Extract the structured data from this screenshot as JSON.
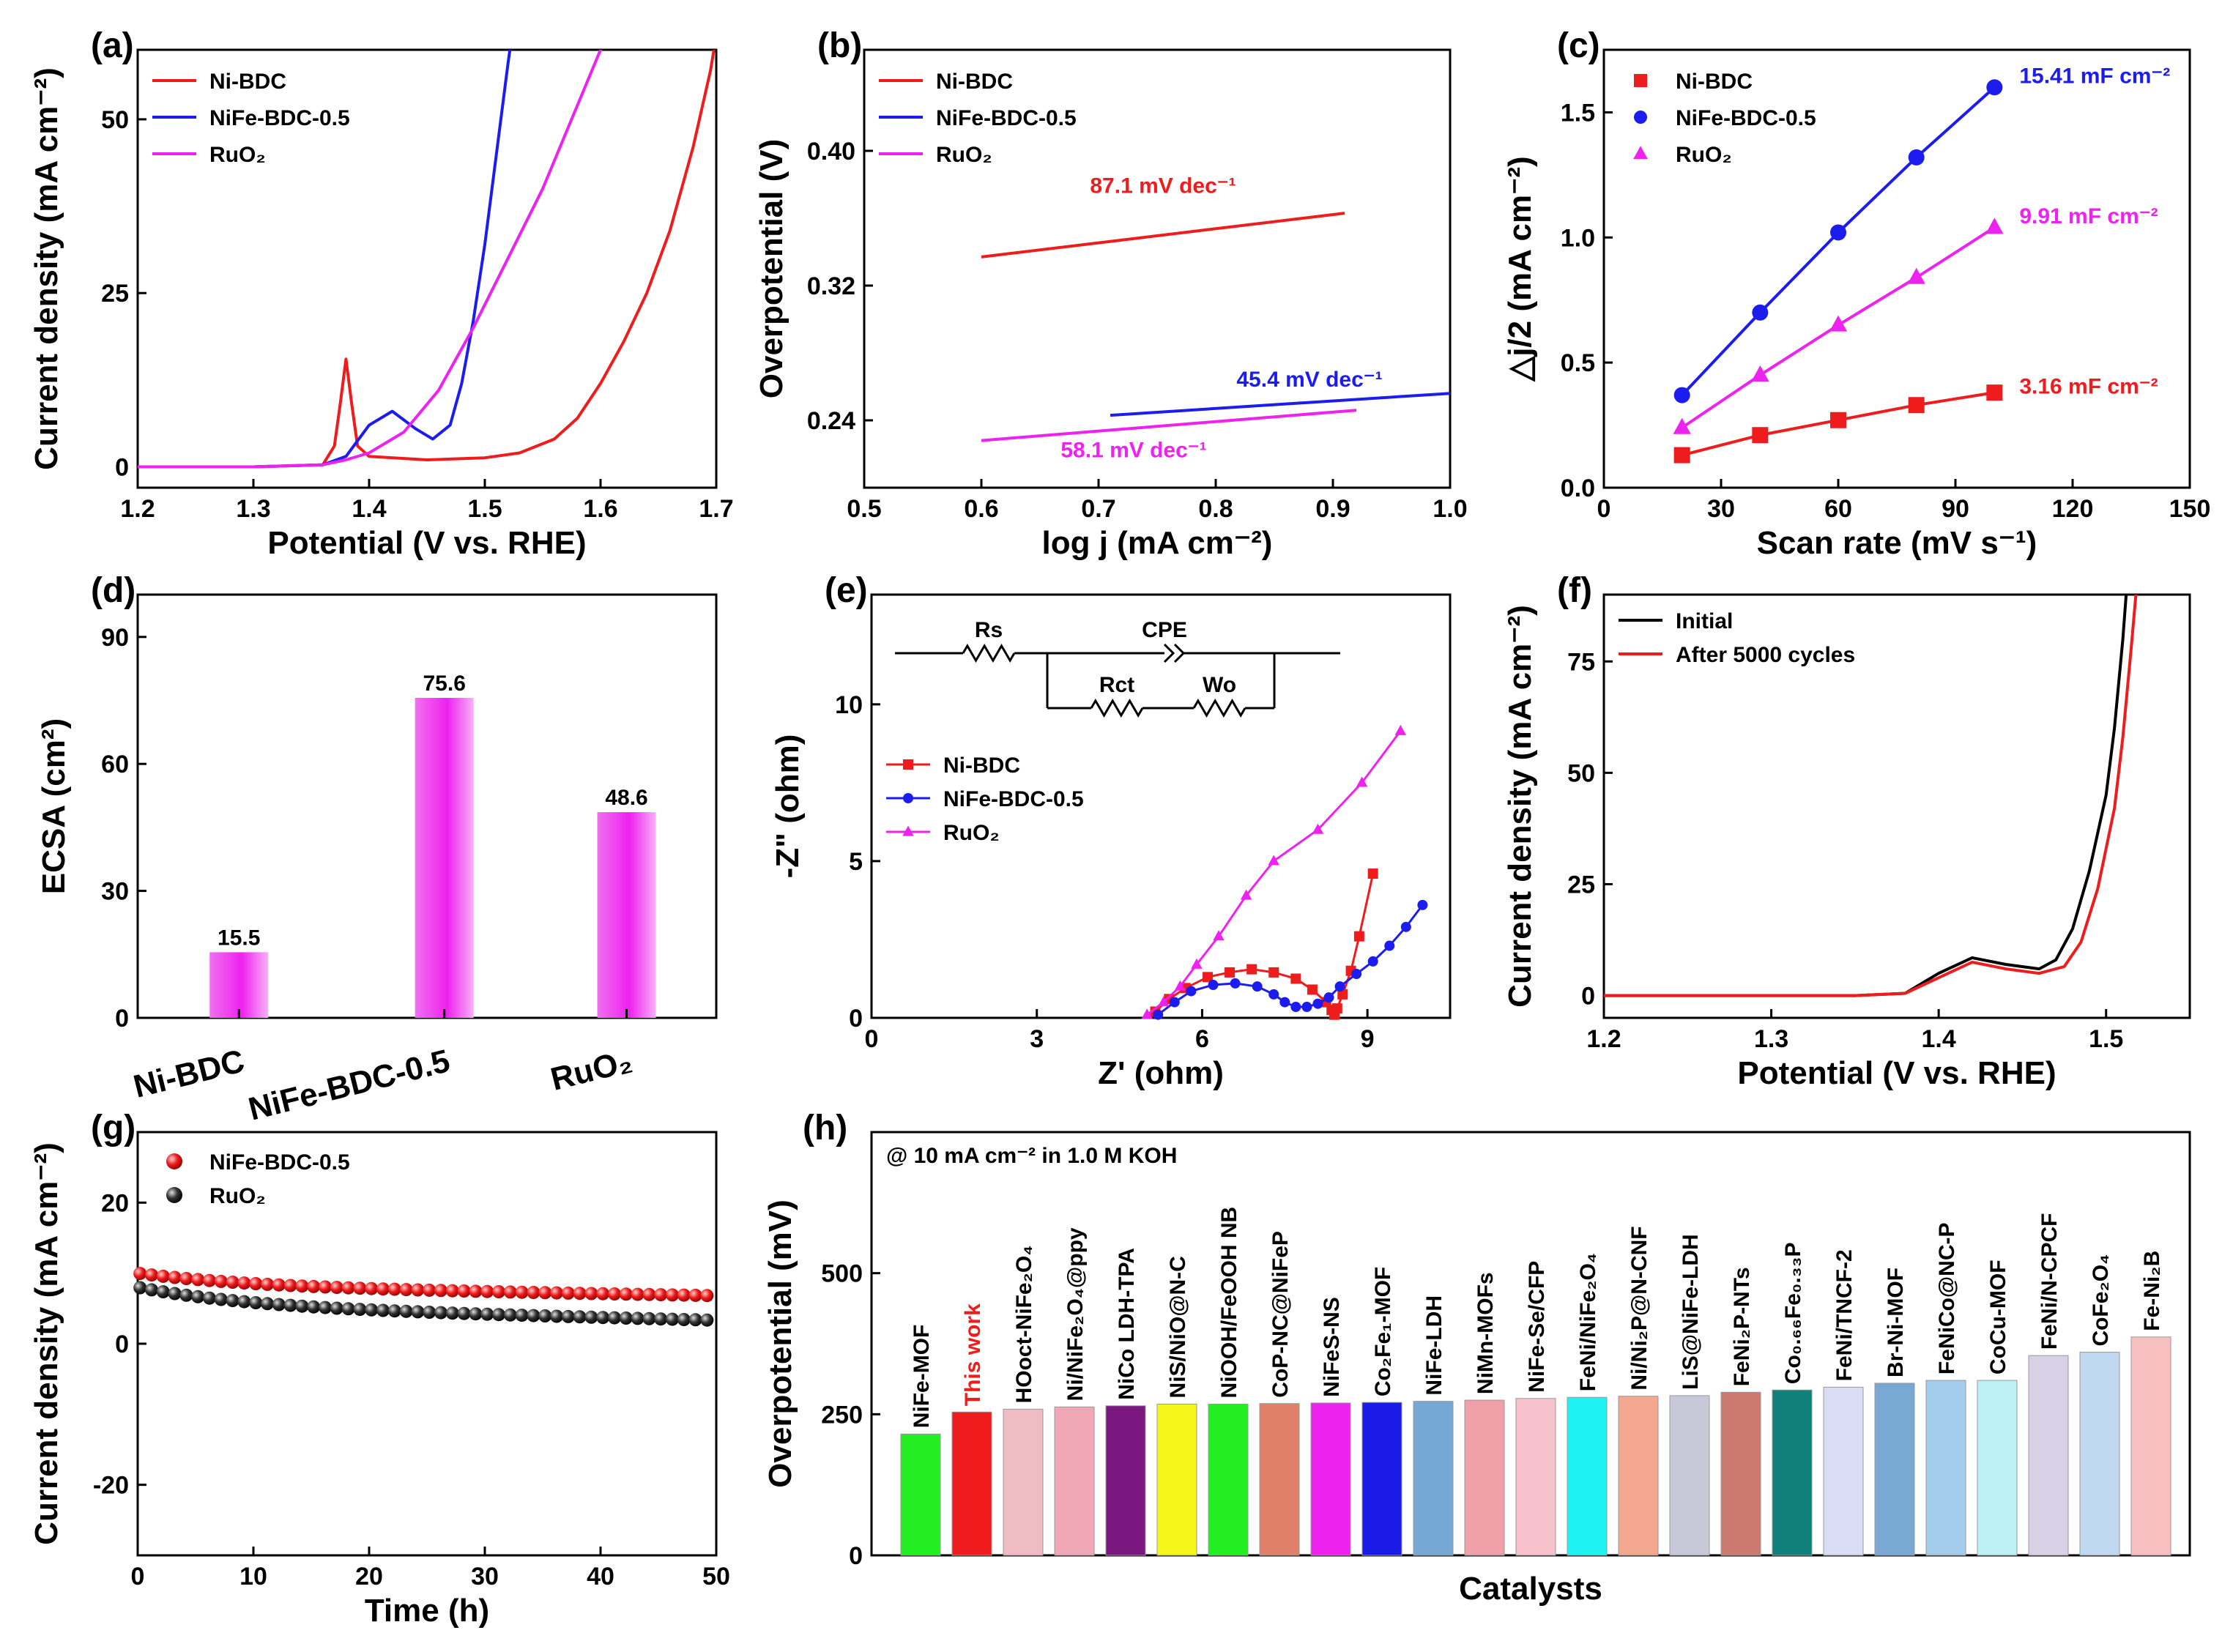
{
  "chart_data": [
    {
      "panel": "(a)",
      "type": "line",
      "xlabel": "Potential (V vs. RHE)",
      "ylabel": "Current density (mA cm⁻²)",
      "xlim": [
        1.2,
        1.7
      ],
      "ylim": [
        -3,
        60
      ],
      "xticks": [
        1.2,
        1.3,
        1.4,
        1.5,
        1.6,
        1.7
      ],
      "yticks": [
        0,
        25,
        50
      ],
      "legend": "top-left",
      "series": [
        {
          "name": "Ni-BDC",
          "color": "#ee1c1c",
          "points": [
            [
              1.2,
              0
            ],
            [
              1.3,
              0
            ],
            [
              1.36,
              0.3
            ],
            [
              1.37,
              3
            ],
            [
              1.375,
              9
            ],
            [
              1.38,
              15.5
            ],
            [
              1.385,
              9
            ],
            [
              1.39,
              3
            ],
            [
              1.4,
              1.5
            ],
            [
              1.45,
              1
            ],
            [
              1.5,
              1.3
            ],
            [
              1.53,
              2
            ],
            [
              1.56,
              4
            ],
            [
              1.58,
              7
            ],
            [
              1.6,
              12
            ],
            [
              1.62,
              18
            ],
            [
              1.64,
              25
            ],
            [
              1.66,
              34
            ],
            [
              1.68,
              46
            ],
            [
              1.695,
              57
            ],
            [
              1.7,
              62
            ]
          ]
        },
        {
          "name": "NiFe-BDC-0.5",
          "color": "#1c1cee",
          "points": [
            [
              1.2,
              0
            ],
            [
              1.3,
              0
            ],
            [
              1.36,
              0.3
            ],
            [
              1.38,
              1.5
            ],
            [
              1.4,
              6
            ],
            [
              1.42,
              8
            ],
            [
              1.44,
              5.5
            ],
            [
              1.455,
              4
            ],
            [
              1.47,
              6
            ],
            [
              1.48,
              12
            ],
            [
              1.49,
              21
            ],
            [
              1.5,
              32
            ],
            [
              1.51,
              45
            ],
            [
              1.52,
              58
            ],
            [
              1.525,
              64
            ]
          ]
        },
        {
          "name": "RuO₂",
          "color": "#ee22ee",
          "points": [
            [
              1.2,
              0
            ],
            [
              1.3,
              0
            ],
            [
              1.36,
              0.3
            ],
            [
              1.38,
              1
            ],
            [
              1.4,
              2
            ],
            [
              1.43,
              5
            ],
            [
              1.46,
              11
            ],
            [
              1.49,
              20
            ],
            [
              1.52,
              30
            ],
            [
              1.55,
              40
            ],
            [
              1.58,
              52
            ],
            [
              1.6,
              60
            ],
            [
              1.61,
              64
            ]
          ]
        }
      ]
    },
    {
      "panel": "(b)",
      "type": "line",
      "xlabel": "log j (mA cm⁻²)",
      "ylabel": "Overpotential (V)",
      "xlim": [
        0.5,
        1.0
      ],
      "ylim": [
        0.2,
        0.46
      ],
      "xticks": [
        0.5,
        0.6,
        0.7,
        0.8,
        0.9,
        1.0
      ],
      "yticks": [
        0.24,
        0.32,
        0.4
      ],
      "legend": "top-left",
      "series": [
        {
          "name": "Ni-BDC",
          "color": "#ee1c1c",
          "points": [
            [
              0.6,
              0.337
            ],
            [
              0.91,
              0.363
            ]
          ],
          "label": "87.1 mV dec⁻¹"
        },
        {
          "name": "NiFe-BDC-0.5",
          "color": "#1c1cee",
          "points": [
            [
              0.71,
              0.243
            ],
            [
              1.0,
              0.256
            ]
          ],
          "label": "45.4 mV dec⁻¹"
        },
        {
          "name": "RuO₂",
          "color": "#ee22ee",
          "points": [
            [
              0.6,
              0.228
            ],
            [
              0.92,
              0.246
            ]
          ],
          "label": "58.1 mV dec⁻¹"
        }
      ]
    },
    {
      "panel": "(c)",
      "type": "scatter",
      "xlabel": "Scan rate (mV s⁻¹)",
      "ylabel": "△j/2 (mA cm⁻²)",
      "xlim": [
        0,
        150
      ],
      "ylim": [
        0,
        1.75
      ],
      "xticks": [
        0,
        30,
        60,
        90,
        120,
        150
      ],
      "yticks": [
        0.0,
        0.5,
        1.0,
        1.5
      ],
      "legend": "top-left",
      "x": [
        20,
        40,
        60,
        80,
        100
      ],
      "series": [
        {
          "name": "Ni-BDC",
          "color": "#ee1c1c",
          "marker": "square",
          "values": [
            0.13,
            0.21,
            0.27,
            0.33,
            0.38
          ],
          "label": "3.16 mF cm⁻²"
        },
        {
          "name": "NiFe-BDC-0.5",
          "color": "#1c1cee",
          "marker": "circle",
          "values": [
            0.37,
            0.7,
            1.02,
            1.32,
            1.6
          ],
          "label": "15.41 mF cm⁻²"
        },
        {
          "name": "RuO₂",
          "color": "#ee22ee",
          "marker": "triangle",
          "values": [
            0.24,
            0.45,
            0.65,
            0.84,
            1.04
          ],
          "label": "9.91 mF cm⁻²"
        }
      ]
    },
    {
      "panel": "(d)",
      "type": "bar",
      "ylabel": "ECSA (cm²)",
      "ylim": [
        0,
        100
      ],
      "yticks": [
        0,
        30,
        60,
        90
      ],
      "categories": [
        "Ni-BDC",
        "NiFe-BDC-0.5",
        "RuO₂"
      ],
      "values": [
        15.5,
        75.6,
        48.6
      ],
      "labels": [
        "15.5",
        "75.6",
        "48.6"
      ],
      "color": "#ee22ee"
    },
    {
      "panel": "(e)",
      "type": "scatter",
      "xlabel": "Z' (ohm)",
      "ylabel": "-Z\" (ohm)",
      "xlim": [
        0,
        10.5
      ],
      "ylim": [
        0,
        13.5
      ],
      "xticks": [
        0,
        3,
        6,
        9
      ],
      "yticks": [
        0,
        5,
        10
      ],
      "legend": "middle-left",
      "circuit": {
        "rs": "Rs",
        "cpe": "CPE",
        "rct": "Rct",
        "wo": "Wo"
      },
      "series": [
        {
          "name": "Ni-BDC",
          "color": "#ee1c1c",
          "marker": "square",
          "points": [
            [
              5.15,
              0.2
            ],
            [
              5.4,
              0.6
            ],
            [
              5.7,
              0.95
            ],
            [
              6.1,
              1.3
            ],
            [
              6.5,
              1.45
            ],
            [
              6.9,
              1.55
            ],
            [
              7.3,
              1.45
            ],
            [
              7.7,
              1.25
            ],
            [
              8.0,
              0.9
            ],
            [
              8.25,
              0.5
            ],
            [
              8.35,
              0.25
            ],
            [
              8.4,
              0.1
            ],
            [
              8.45,
              0.3
            ],
            [
              8.55,
              0.75
            ],
            [
              8.7,
              1.5
            ],
            [
              8.85,
              2.6
            ],
            [
              9.1,
              4.6
            ]
          ]
        },
        {
          "name": "NiFe-BDC-0.5",
          "color": "#1c1cee",
          "points": [
            [
              5.2,
              0.1
            ],
            [
              5.5,
              0.5
            ],
            [
              5.8,
              0.85
            ],
            [
              6.2,
              1.05
            ],
            [
              6.6,
              1.1
            ],
            [
              7.0,
              1.0
            ],
            [
              7.3,
              0.75
            ],
            [
              7.5,
              0.5
            ],
            [
              7.7,
              0.35
            ],
            [
              7.9,
              0.35
            ],
            [
              8.1,
              0.45
            ],
            [
              8.3,
              0.65
            ],
            [
              8.5,
              1.0
            ],
            [
              8.8,
              1.4
            ],
            [
              9.1,
              1.8
            ],
            [
              9.4,
              2.3
            ],
            [
              9.7,
              2.9
            ],
            [
              10.0,
              3.6
            ]
          ]
        },
        {
          "name": "RuO₂",
          "color": "#ee22ee",
          "marker": "triangle",
          "points": [
            [
              5.0,
              0.1
            ],
            [
              5.3,
              0.5
            ],
            [
              5.6,
              1.0
            ],
            [
              5.9,
              1.7
            ],
            [
              6.3,
              2.6
            ],
            [
              6.8,
              3.9
            ],
            [
              7.3,
              5.0
            ],
            [
              8.1,
              6.0
            ],
            [
              8.9,
              7.5
            ],
            [
              9.6,
              9.15
            ]
          ]
        }
      ]
    },
    {
      "panel": "(f)",
      "type": "line",
      "xlabel": "Potential (V vs. RHE)",
      "ylabel": "Current density (mA cm⁻²)",
      "xlim": [
        1.2,
        1.55
      ],
      "ylim": [
        -5,
        90
      ],
      "xticks": [
        1.2,
        1.3,
        1.4,
        1.5
      ],
      "yticks": [
        0,
        25,
        50,
        75
      ],
      "legend": "top-left",
      "series": [
        {
          "name": "Initial",
          "color": "#000000",
          "points": [
            [
              1.2,
              0
            ],
            [
              1.35,
              0
            ],
            [
              1.38,
              0.5
            ],
            [
              1.4,
              5
            ],
            [
              1.42,
              8.5
            ],
            [
              1.44,
              7
            ],
            [
              1.46,
              6
            ],
            [
              1.47,
              8
            ],
            [
              1.48,
              15
            ],
            [
              1.49,
              28
            ],
            [
              1.5,
              45
            ],
            [
              1.505,
              60
            ],
            [
              1.51,
              80
            ],
            [
              1.513,
              95
            ]
          ]
        },
        {
          "name": "After 5000 cycles",
          "color": "#ee1c1c",
          "points": [
            [
              1.2,
              0
            ],
            [
              1.35,
              0
            ],
            [
              1.38,
              0.5
            ],
            [
              1.4,
              4
            ],
            [
              1.42,
              7.5
            ],
            [
              1.44,
              6
            ],
            [
              1.46,
              5
            ],
            [
              1.475,
              6.5
            ],
            [
              1.485,
              12
            ],
            [
              1.495,
              24
            ],
            [
              1.505,
              42
            ],
            [
              1.51,
              58
            ],
            [
              1.515,
              78
            ],
            [
              1.519,
              95
            ]
          ]
        }
      ]
    },
    {
      "panel": "(g)",
      "type": "scatter",
      "xlabel": "Time (h)",
      "ylabel": "Current density (mA cm⁻²)",
      "xlim": [
        0,
        50
      ],
      "ylim": [
        -30,
        30
      ],
      "xticks": [
        0,
        10,
        20,
        30,
        40,
        50
      ],
      "yticks": [
        -20,
        0,
        20
      ],
      "legend": "top-left",
      "series": [
        {
          "name": "NiFe-BDC-0.5",
          "color": "#ee1c1c",
          "start": 10,
          "end": 6.8
        },
        {
          "name": "RuO₂",
          "color": "#222222",
          "start": 8,
          "end": 3.3
        }
      ]
    },
    {
      "panel": "(h)",
      "type": "bar",
      "xlabel": "Catalysts",
      "ylabel": "Overpotential (mV)",
      "ylim": [
        0,
        750
      ],
      "yticks": [
        0,
        250,
        500
      ],
      "annotation": "@ 10 mA cm⁻² in 1.0 M KOH",
      "categories": [
        "NiFe-MOF",
        "This work",
        "HOoct-NiFe₂O₄",
        "Ni/NiFe₂O₄@ppy",
        "NiCo LDH-TPA",
        "NiS/NiO@N-C",
        "NiOOH/FeOOH NB",
        "CoP-NC@NiFeP",
        "NiFeS-NS",
        "Co₂Fe₁-MOF",
        "NiFe-LDH",
        "NiMn-MOFs",
        "NiFe-Se/CFP",
        "FeNi/NiFe₂O₄",
        "Ni/Ni₂P@N-CNF",
        "LiS@NiFe-LDH",
        "FeNi₂P-NTs",
        "Co₀.₆₆Fe₀.₃₃P",
        "FeNi/TNCF-2",
        "Br-Ni-MOF",
        "FeNiCo@NC-P",
        "CoCu-MOF",
        "FeNi/N-CPCF",
        "CoFe₂O₄",
        "Fe-Ni₂B"
      ],
      "values": [
        215,
        254,
        259,
        263,
        265,
        268,
        268,
        269,
        270,
        271,
        273,
        275,
        278,
        280,
        282,
        283,
        289,
        293,
        298,
        305,
        310,
        310,
        354,
        360,
        387
      ],
      "colors": [
        "#22ee22",
        "#ee1c1c",
        "#efbcc4",
        "#f0a8b6",
        "#7a1880",
        "#f6f61a",
        "#22ee22",
        "#e0806a",
        "#ee22ee",
        "#1b1be8",
        "#76a8d6",
        "#f0a0a8",
        "#f8c2cc",
        "#1ef2f2",
        "#f4a890",
        "#c8c8d8",
        "#cc7a70",
        "#10807a",
        "#d8dcf4",
        "#7aa8d4",
        "#a4ccec",
        "#bcf0f4",
        "#d8d0e4",
        "#c0d8f0",
        "#f8c0c0"
      ]
    }
  ]
}
